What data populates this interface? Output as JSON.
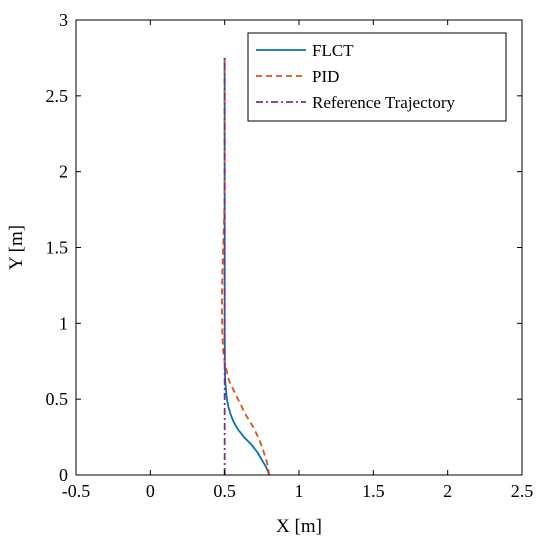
{
  "colors": {
    "FLCT": "#0072BD",
    "PID": "#D95319",
    "Reference Trajectory": "#7E2F8E"
  },
  "chart_data": {
    "type": "line",
    "xlabel": "X [m]",
    "ylabel": "Y [m]",
    "xlim": [
      -0.5,
      2.5
    ],
    "ylim": [
      0,
      3
    ],
    "xticks": [
      -0.5,
      0,
      0.5,
      1,
      1.5,
      2,
      2.5
    ],
    "xtick_labels": [
      "-0.5",
      "0",
      "0.5",
      "1",
      "1.5",
      "2",
      "2.5"
    ],
    "yticks": [
      0,
      0.5,
      1,
      1.5,
      2,
      2.5,
      3
    ],
    "ytick_labels": [
      "0",
      "0.5",
      "1",
      "1.5",
      "2",
      "2.5",
      "3"
    ],
    "grid": false,
    "legend_position": "top-right",
    "series": [
      {
        "name": "FLCT",
        "style": "solid",
        "x": [
          0.8,
          0.78,
          0.75,
          0.72,
          0.68,
          0.63,
          0.59,
          0.56,
          0.54,
          0.525,
          0.515,
          0.51,
          0.505,
          0.503,
          0.502,
          0.501,
          0.5,
          0.5,
          0.5,
          0.5,
          0.5
        ],
        "y": [
          0.0,
          0.05,
          0.1,
          0.15,
          0.2,
          0.25,
          0.3,
          0.35,
          0.4,
          0.45,
          0.5,
          0.55,
          0.6,
          0.65,
          0.7,
          0.8,
          1.0,
          1.5,
          2.0,
          2.5,
          2.75
        ]
      },
      {
        "name": "PID",
        "style": "dashed",
        "x": [
          0.8,
          0.785,
          0.76,
          0.73,
          0.69,
          0.64,
          0.6,
          0.56,
          0.53,
          0.515,
          0.5,
          0.49,
          0.485,
          0.482,
          0.482,
          0.485,
          0.49,
          0.495,
          0.499,
          0.5,
          0.5,
          0.5
        ],
        "y": [
          0.0,
          0.08,
          0.16,
          0.24,
          0.32,
          0.4,
          0.48,
          0.56,
          0.62,
          0.68,
          0.74,
          0.82,
          0.92,
          1.05,
          1.2,
          1.35,
          1.5,
          1.65,
          1.8,
          2.0,
          2.5,
          2.75
        ]
      },
      {
        "name": "Reference Trajectory",
        "style": "dashdot",
        "x": [
          0.5,
          0.5
        ],
        "y": [
          0.0,
          2.75
        ]
      }
    ]
  }
}
